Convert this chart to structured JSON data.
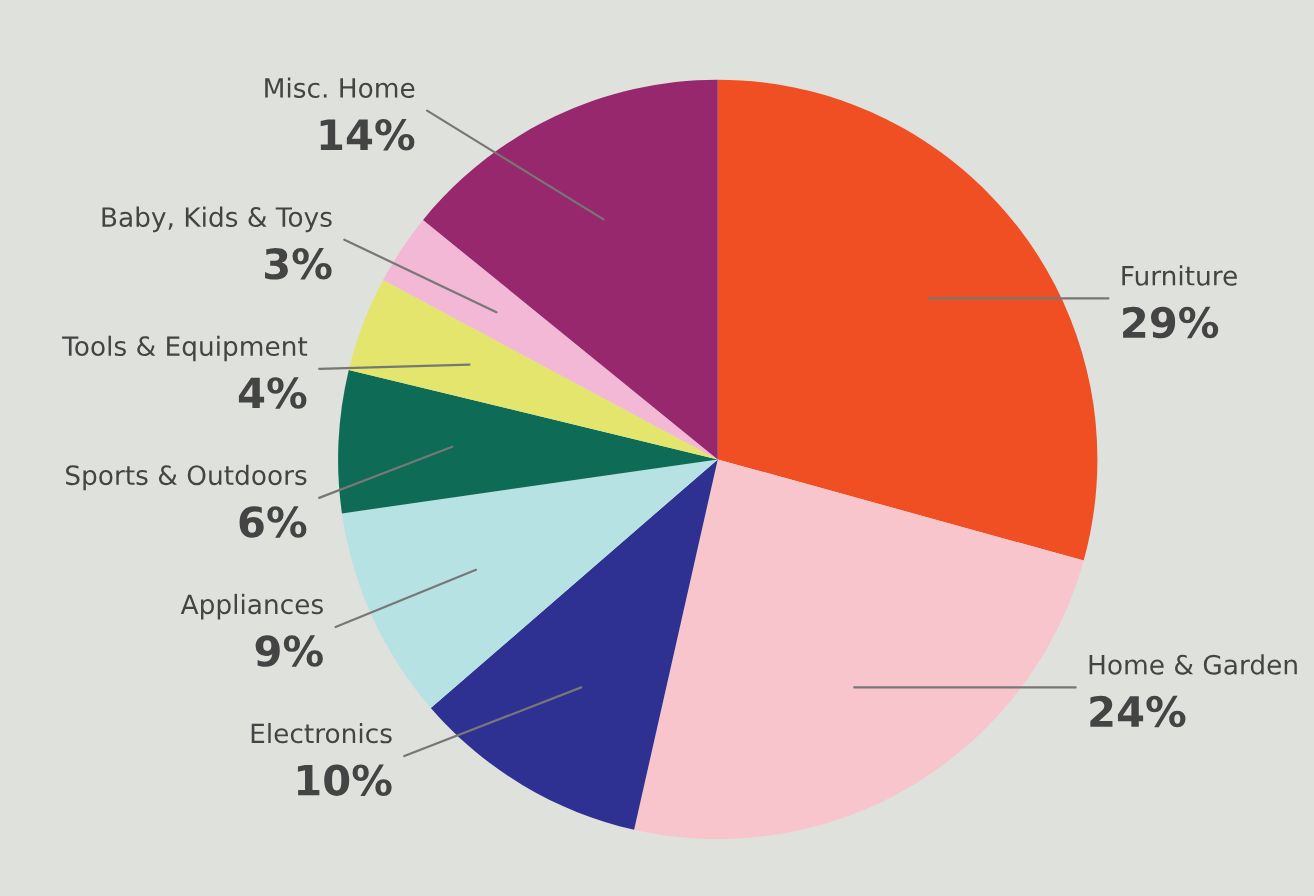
{
  "chart_data": {
    "type": "pie",
    "categories": [
      "Furniture",
      "Home & Garden",
      "Electronics",
      "Appliances",
      "Sports & Outdoors",
      "Tools & Equipment",
      "Baby, Kids & Toys",
      "Misc. Home"
    ],
    "values": [
      29,
      24,
      10,
      9,
      6,
      4,
      3,
      14
    ],
    "value_labels": [
      "29%",
      "24%",
      "10%",
      "9%",
      "6%",
      "4%",
      "3%",
      "14%"
    ],
    "colors": [
      "#f04e23",
      "#f8c5cc",
      "#2e3192",
      "#b7e2e4",
      "#0e6b55",
      "#e3e56d",
      "#f3b8d6",
      "#97286e"
    ]
  }
}
